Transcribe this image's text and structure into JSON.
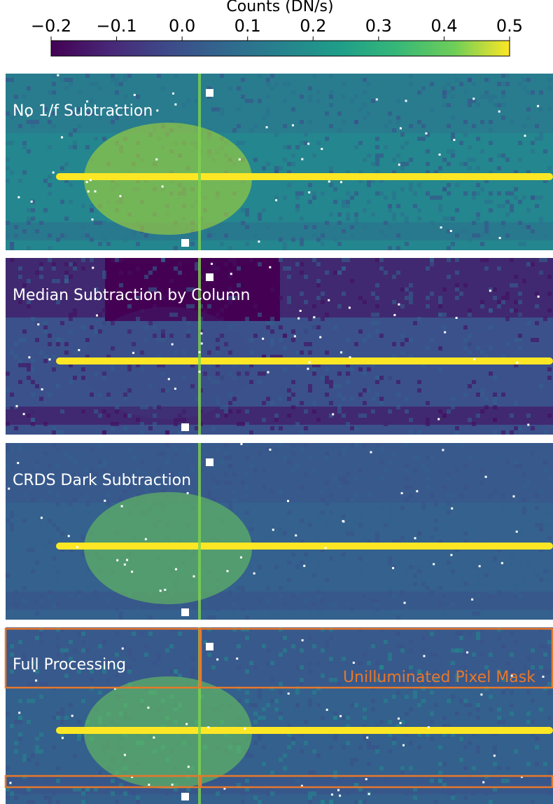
{
  "chart_data": {
    "type": "image-panels",
    "colorbar": {
      "label": "Counts (DN/s)",
      "xlim": [
        -0.2,
        0.5
      ],
      "xticks": [
        {
          "value": -0.2,
          "label": "−0.2"
        },
        {
          "value": -0.1,
          "label": "−0.1"
        },
        {
          "value": 0,
          "label": "0.0"
        },
        0.1,
        0.2,
        0.3,
        0.4,
        0.5
      ],
      "colormap": "viridis"
    },
    "panels": [
      {
        "title": "No 1/f Subtraction"
      },
      {
        "title": "Median Subtraction by Column"
      },
      {
        "title": "CRDS Dark Subtraction"
      },
      {
        "title": "Full Processing",
        "annotation": "Unilluminated Pixel Mask"
      }
    ]
  }
}
